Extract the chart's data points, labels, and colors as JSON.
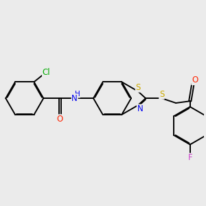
{
  "bg_color": "#ebebeb",
  "bond_color": "#000000",
  "bond_width": 1.4,
  "dbo": 0.05,
  "atom_colors": {
    "Cl": "#00aa00",
    "O": "#ff2200",
    "N": "#0000ee",
    "S": "#ccaa00",
    "F": "#cc44cc",
    "H": "#0000ee"
  },
  "fs": 8.5
}
